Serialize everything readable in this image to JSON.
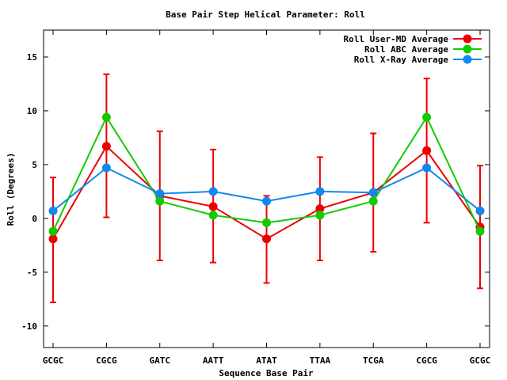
{
  "chart_data": {
    "type": "line",
    "title": "Base Pair Step Helical Parameter: Roll",
    "xlabel": "Sequence Base Pair",
    "ylabel": "Roll (Degrees)",
    "categories": [
      "GCGC",
      "CGCG",
      "GATC",
      "AATT",
      "ATAT",
      "TTAA",
      "TCGA",
      "CGCG",
      "GCGC"
    ],
    "ylim": [
      -12,
      17.5
    ],
    "yticks": [
      -10,
      -5,
      0,
      5,
      10,
      15
    ],
    "legend_position": "top-right",
    "series": [
      {
        "name": "Roll User-MD Average",
        "color": "#ee0000",
        "values": [
          -1.9,
          6.7,
          2.1,
          1.1,
          -1.9,
          0.9,
          2.4,
          6.3,
          -0.8
        ],
        "err_low": [
          -7.8,
          0.1,
          -3.9,
          -4.1,
          -6.0,
          -3.9,
          -3.1,
          -0.4,
          -6.5
        ],
        "err_high": [
          3.8,
          13.4,
          8.1,
          6.4,
          2.1,
          5.7,
          7.9,
          13.0,
          4.9
        ]
      },
      {
        "name": "Roll ABC Average",
        "color": "#11cc00",
        "values": [
          -1.2,
          9.4,
          1.6,
          0.3,
          -0.4,
          0.3,
          1.6,
          9.4,
          -1.2
        ]
      },
      {
        "name": "Roll X-Ray Average",
        "color": "#1188ee",
        "values": [
          0.7,
          4.7,
          2.3,
          2.5,
          1.6,
          2.5,
          2.4,
          4.7,
          0.7
        ]
      }
    ]
  }
}
